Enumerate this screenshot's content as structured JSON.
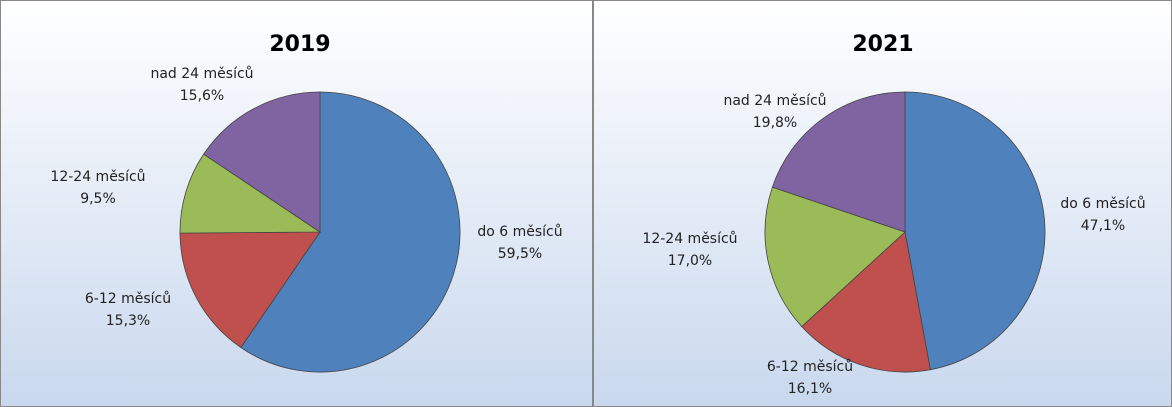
{
  "chart_data": [
    {
      "type": "pie",
      "title": "2019",
      "categories": [
        "do 6 měsíců",
        "6-12 měsíců",
        "12-24 měsíců",
        "nad 24 měsíců"
      ],
      "values": [
        59.5,
        15.3,
        9.5,
        15.6
      ],
      "value_labels": [
        "59,5%",
        "15,3%",
        "9,5%",
        "15,6%"
      ],
      "colors": [
        "#4f81bd",
        "#c0504d",
        "#9bbb59",
        "#8064a2"
      ]
    },
    {
      "type": "pie",
      "title": "2021",
      "categories": [
        "do 6 měsíců",
        "6-12 měsíců",
        "12-24 měsíců",
        "nad 24 měsíců"
      ],
      "values": [
        47.1,
        16.1,
        17.0,
        19.8
      ],
      "value_labels": [
        "47,1%",
        "16,1%",
        "17,0%",
        "19,8%"
      ],
      "colors": [
        "#4f81bd",
        "#c0504d",
        "#9bbb59",
        "#8064a2"
      ]
    }
  ]
}
